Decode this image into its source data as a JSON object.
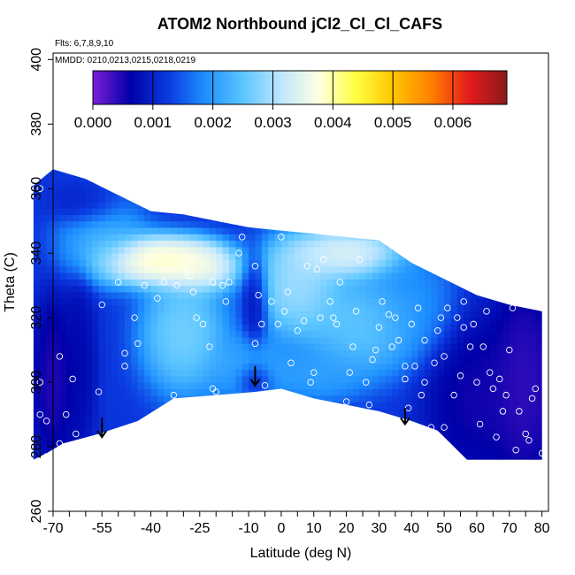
{
  "chart_data": {
    "type": "heatmap",
    "title": "ATOM2 Northbound jCl2_Cl_Cl_CAFS",
    "flights_label": "Flts: 6,7,8,9,10",
    "dates_label": "MMDD: 0210,0213,0215,0218,0219",
    "xlabel": "Latitude (deg N)",
    "ylabel": "Theta (C)",
    "xlim": [
      -70,
      82
    ],
    "ylim": [
      260,
      402
    ],
    "x_ticks": [
      -70,
      -55,
      -40,
      -25,
      -10,
      0,
      10,
      20,
      30,
      40,
      50,
      60,
      70,
      80
    ],
    "y_ticks": [
      260,
      280,
      300,
      320,
      340,
      360,
      380,
      400
    ],
    "colorbar": {
      "min": 0.0,
      "max": 0.0069,
      "ticks": [
        "0.000",
        "0.001",
        "0.002",
        "0.003",
        "0.004",
        "0.005",
        "0.006"
      ],
      "tick_values": [
        0.0,
        0.001,
        0.002,
        0.003,
        0.004,
        0.005,
        0.006
      ],
      "colors": [
        "#7b1fd6",
        "#0000a8",
        "#0a3ae0",
        "#1e90ff",
        "#5cc6ff",
        "#bfe6ff",
        "#ffffe0",
        "#ffff40",
        "#ffc400",
        "#ff7f00",
        "#e41a1c",
        "#8b1a1a"
      ]
    },
    "field": {
      "bottom_boundary": [
        [
          -76,
          276
        ],
        [
          -72,
          278
        ],
        [
          -67,
          281
        ],
        [
          -56,
          284
        ],
        [
          -44,
          288
        ],
        [
          -33,
          295
        ],
        [
          -20,
          296
        ],
        [
          -8,
          297
        ],
        [
          0,
          298
        ],
        [
          10,
          295
        ],
        [
          20,
          293
        ],
        [
          30,
          291
        ],
        [
          40,
          288
        ],
        [
          48,
          285
        ],
        [
          57,
          276
        ],
        [
          80,
          276
        ]
      ],
      "top_boundary": [
        [
          -76,
          361
        ],
        [
          -70,
          366
        ],
        [
          -60,
          363
        ],
        [
          -50,
          358
        ],
        [
          -40,
          353
        ],
        [
          -30,
          352
        ],
        [
          -20,
          350
        ],
        [
          -10,
          348
        ],
        [
          0,
          347
        ],
        [
          10,
          346
        ],
        [
          20,
          345
        ],
        [
          30,
          344
        ],
        [
          40,
          337
        ],
        [
          50,
          332
        ],
        [
          60,
          327
        ],
        [
          70,
          324
        ],
        [
          80,
          322
        ],
        [
          80,
          276
        ]
      ],
      "blobs": [
        {
          "lat": -40,
          "theta": 338,
          "value": 0.0045,
          "rx": 14,
          "ry": 6
        },
        {
          "lat": -26,
          "theta": 336,
          "value": 0.0041,
          "rx": 10,
          "ry": 6
        },
        {
          "lat": 20,
          "theta": 340,
          "value": 0.0039,
          "rx": 14,
          "ry": 6
        },
        {
          "lat": 5,
          "theta": 330,
          "value": 0.0033,
          "rx": 10,
          "ry": 12
        },
        {
          "lat": -30,
          "theta": 315,
          "value": 0.003,
          "rx": 10,
          "ry": 14
        },
        {
          "lat": 25,
          "theta": 318,
          "value": 0.0028,
          "rx": 14,
          "ry": 12
        },
        {
          "lat": -55,
          "theta": 345,
          "value": 0.0024,
          "rx": 10,
          "ry": 10
        },
        {
          "lat": 40,
          "theta": 325,
          "value": 0.002,
          "rx": 10,
          "ry": 12
        },
        {
          "lat": 10,
          "theta": 302,
          "value": 0.0022,
          "rx": 12,
          "ry": 6
        },
        {
          "lat": -10,
          "theta": 305,
          "value": 0.0023,
          "rx": 10,
          "ry": 8
        },
        {
          "lat": -8,
          "theta": 325,
          "value": 0.0006,
          "rx": 3,
          "ry": 11
        },
        {
          "lat": -62,
          "theta": 305,
          "value": 0.0006,
          "rx": 4,
          "ry": 22
        },
        {
          "lat": -70,
          "theta": 300,
          "value": 0.0003,
          "rx": 5,
          "ry": 20
        },
        {
          "lat": -8,
          "theta": 301,
          "value": 0.0005,
          "rx": 4,
          "ry": 4
        },
        {
          "lat": 60,
          "theta": 295,
          "value": 0.0004,
          "rx": 12,
          "ry": 20
        },
        {
          "lat": 75,
          "theta": 300,
          "value": 0.0002,
          "rx": 8,
          "ry": 25
        },
        {
          "lat": -60,
          "theta": 355,
          "value": 0.0008,
          "rx": 8,
          "ry": 5
        }
      ],
      "background_value": 0.0012
    },
    "observations": [
      [
        -74,
        360
      ],
      [
        -74,
        300
      ],
      [
        -74,
        290
      ],
      [
        -72,
        277
      ],
      [
        -72,
        288
      ],
      [
        -68,
        308
      ],
      [
        -68,
        281
      ],
      [
        -66,
        290
      ],
      [
        -63,
        284
      ],
      [
        -60,
        277
      ],
      [
        -56,
        297
      ],
      [
        -55,
        324
      ],
      [
        -50,
        331
      ],
      [
        -48,
        309
      ],
      [
        -48,
        305
      ],
      [
        -47,
        285
      ],
      [
        -45,
        320
      ],
      [
        -44,
        312
      ],
      [
        -42,
        330
      ],
      [
        -40,
        339
      ],
      [
        -38,
        326
      ],
      [
        -36,
        331
      ],
      [
        -33,
        296
      ],
      [
        -32,
        330
      ],
      [
        -29,
        334
      ],
      [
        -28,
        333
      ],
      [
        -27,
        328
      ],
      [
        -26,
        320
      ],
      [
        -24,
        318
      ],
      [
        -22,
        311
      ],
      [
        -21,
        331
      ],
      [
        -21,
        298
      ],
      [
        -20,
        297
      ],
      [
        -18,
        330
      ],
      [
        -17,
        325
      ],
      [
        -16,
        331
      ],
      [
        -13,
        340
      ],
      [
        -12,
        345
      ],
      [
        -8,
        336
      ],
      [
        -8,
        312
      ],
      [
        -7,
        327
      ],
      [
        -6,
        318
      ],
      [
        -5,
        299
      ],
      [
        -3,
        325
      ],
      [
        -1,
        318
      ],
      [
        0,
        345
      ],
      [
        1,
        322
      ],
      [
        2,
        328
      ],
      [
        3,
        306
      ],
      [
        5,
        316
      ],
      [
        7,
        319
      ],
      [
        8,
        336
      ],
      [
        9,
        300
      ],
      [
        10,
        303
      ],
      [
        11,
        335
      ],
      [
        12,
        320
      ],
      [
        13,
        338
      ],
      [
        15,
        325
      ],
      [
        16,
        320
      ],
      [
        17,
        318
      ],
      [
        18,
        331
      ],
      [
        20,
        294
      ],
      [
        21,
        303
      ],
      [
        22,
        311
      ],
      [
        23,
        322
      ],
      [
        24,
        338
      ],
      [
        25,
        346
      ],
      [
        26,
        300
      ],
      [
        27,
        293
      ],
      [
        28,
        307
      ],
      [
        29,
        310
      ],
      [
        30,
        317
      ],
      [
        31,
        325
      ],
      [
        33,
        321
      ],
      [
        35,
        320
      ],
      [
        36,
        313
      ],
      [
        38,
        305
      ],
      [
        38,
        301
      ],
      [
        39,
        292
      ],
      [
        40,
        318
      ],
      [
        41,
        305
      ],
      [
        42,
        323
      ],
      [
        44,
        300
      ],
      [
        44,
        313
      ],
      [
        46,
        286
      ],
      [
        47,
        306
      ],
      [
        48,
        316
      ],
      [
        49,
        320
      ],
      [
        50,
        286
      ],
      [
        50,
        308
      ],
      [
        51,
        323
      ],
      [
        53,
        296
      ],
      [
        54,
        320
      ],
      [
        55,
        302
      ],
      [
        56,
        317
      ],
      [
        58,
        311
      ],
      [
        59,
        318
      ],
      [
        60,
        300
      ],
      [
        61,
        287
      ],
      [
        62,
        311
      ],
      [
        63,
        322
      ],
      [
        64,
        303
      ],
      [
        65,
        298
      ],
      [
        66,
        283
      ],
      [
        67,
        301
      ],
      [
        68,
        291
      ],
      [
        69,
        296
      ],
      [
        70,
        310
      ],
      [
        71,
        323
      ],
      [
        72,
        279
      ],
      [
        73,
        291
      ],
      [
        75,
        284
      ],
      [
        76,
        282
      ],
      [
        77,
        295
      ],
      [
        78,
        298
      ],
      [
        80,
        278
      ],
      [
        80,
        323
      ],
      [
        56,
        325
      ],
      [
        43,
        296
      ],
      [
        -64,
        301
      ],
      [
        34,
        311
      ]
    ],
    "arrows": [
      {
        "lat": -55,
        "theta_top": 289,
        "theta_tip": 283
      },
      {
        "lat": -8,
        "theta_top": 305,
        "theta_tip": 299
      },
      {
        "lat": 38,
        "theta_top": 292,
        "theta_tip": 287
      }
    ]
  }
}
